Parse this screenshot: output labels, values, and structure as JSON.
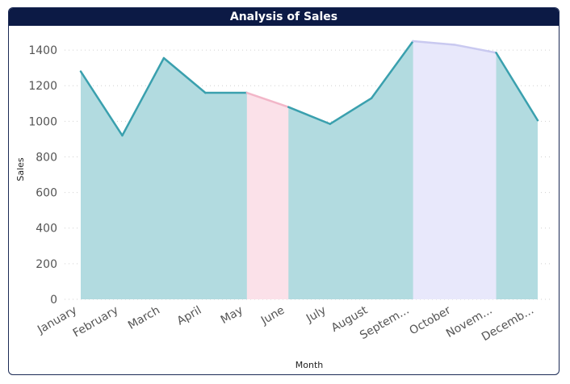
{
  "chart_data": {
    "type": "area",
    "title": "Analysis of Sales",
    "xlabel": "Month",
    "ylabel": "Sales",
    "categories": [
      "January",
      "February",
      "March",
      "April",
      "May",
      "June",
      "July",
      "August",
      "Septem...",
      "October",
      "Novem...",
      "Decemb..."
    ],
    "values": [
      1280,
      920,
      1355,
      1160,
      1160,
      1080,
      985,
      1130,
      1450,
      1430,
      1385,
      1005
    ],
    "y_ticks": [
      "0",
      "200",
      "400",
      "600",
      "800",
      "1000",
      "1200",
      "1400"
    ],
    "ylim": [
      0,
      1500
    ],
    "grid": "horizontal-dotted",
    "highlight_bands": [
      {
        "from_index": 4,
        "to_index": 5,
        "color": "#fbe1e9",
        "line_color": "#f2b6c8"
      },
      {
        "from_index": 8,
        "to_index": 10,
        "color": "#e8e8fb",
        "line_color": "#c9c9f0"
      }
    ],
    "colors": {
      "area": "#b2dbe0",
      "line": "#3aa0ae",
      "grid": "#d0d0d0"
    }
  }
}
